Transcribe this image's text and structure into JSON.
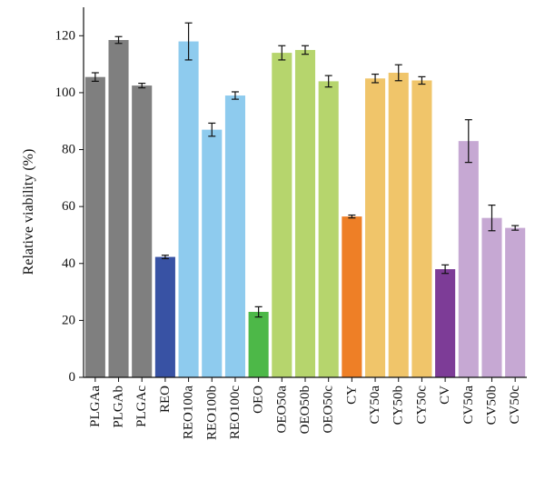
{
  "chart_data": {
    "type": "bar",
    "title": "",
    "xlabel": "",
    "ylabel": "Relative viability (%)",
    "ylim": [
      0,
      130
    ],
    "yticks": [
      0,
      20,
      40,
      60,
      80,
      100,
      120
    ],
    "grid": false,
    "categories": [
      "PLGAa",
      "PLGAb",
      "PLGAc",
      "REO",
      "REO100a",
      "REO100b",
      "REO100c",
      "OEO",
      "OEO50a",
      "OEO50b",
      "OEO50c",
      "CY",
      "CY50a",
      "CY50b",
      "CY50c",
      "CV",
      "CV50a",
      "CV50b",
      "CV50c"
    ],
    "values": [
      105.5,
      118.5,
      102.5,
      42.3,
      118,
      87,
      99,
      23,
      114,
      115,
      104,
      56.5,
      105,
      107,
      104.3,
      38,
      83,
      56,
      52.5
    ],
    "errors": [
      1.5,
      1.2,
      0.8,
      0.6,
      6.5,
      2.3,
      1.3,
      1.8,
      2.5,
      1.5,
      2,
      0.5,
      1.5,
      2.8,
      1.3,
      1.5,
      7.5,
      4.5,
      0.8
    ],
    "colors": [
      "#7f7f7f",
      "#7f7f7f",
      "#7f7f7f",
      "#3852a4",
      "#8ecbee",
      "#8ecbee",
      "#8ecbee",
      "#4db848",
      "#b6d56d",
      "#b6d56d",
      "#b6d56d",
      "#ee7f26",
      "#f0c56a",
      "#f0c56a",
      "#f0c56a",
      "#7d3c97",
      "#c6a8d3",
      "#c6a8d3",
      "#c6a8d3"
    ]
  }
}
